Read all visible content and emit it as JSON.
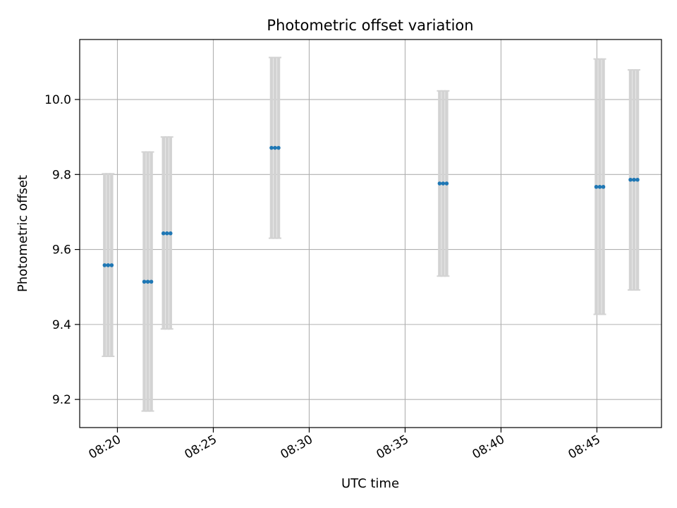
{
  "chart_data": {
    "type": "scatter",
    "title": "Photometric offset variation",
    "xlabel": "UTC time",
    "ylabel": "Photometric offset",
    "x_tick_labels": [
      "08:20",
      "08:25",
      "08:30",
      "08:35",
      "08:40",
      "08:45"
    ],
    "x_ticks": [
      "08:20",
      "08:25",
      "08:30",
      "08:35",
      "08:40",
      "08:45"
    ],
    "y_tick_labels": [
      "9.2",
      "9.4",
      "9.6",
      "9.8",
      "10.0"
    ],
    "y_ticks": [
      9.2,
      9.4,
      9.6,
      9.8,
      10.0
    ],
    "xlim": [
      "08:18:02",
      "08:48:22"
    ],
    "ylim": [
      9.125,
      10.16
    ],
    "grid": true,
    "errorbar_color": "#d3d3d3",
    "point_color": "#1f77b4",
    "series": [
      {
        "points": [
          {
            "x": "08:19:20",
            "y": 9.558,
            "yerr_low": 9.315,
            "yerr_high": 9.802
          },
          {
            "x": "08:19:31",
            "y": 9.558,
            "yerr_low": 9.315,
            "yerr_high": 9.802
          },
          {
            "x": "08:19:42",
            "y": 9.558,
            "yerr_low": 9.315,
            "yerr_high": 9.802
          },
          {
            "x": "08:21:24",
            "y": 9.514,
            "yerr_low": 9.169,
            "yerr_high": 9.86
          },
          {
            "x": "08:21:35",
            "y": 9.514,
            "yerr_low": 9.169,
            "yerr_high": 9.86
          },
          {
            "x": "08:21:46",
            "y": 9.514,
            "yerr_low": 9.169,
            "yerr_high": 9.86
          },
          {
            "x": "08:22:24",
            "y": 9.643,
            "yerr_low": 9.388,
            "yerr_high": 9.9
          },
          {
            "x": "08:22:35",
            "y": 9.643,
            "yerr_low": 9.388,
            "yerr_high": 9.9
          },
          {
            "x": "08:22:46",
            "y": 9.643,
            "yerr_low": 9.388,
            "yerr_high": 9.9
          },
          {
            "x": "08:28:02",
            "y": 9.871,
            "yerr_low": 9.63,
            "yerr_high": 10.112
          },
          {
            "x": "08:28:13",
            "y": 9.871,
            "yerr_low": 9.63,
            "yerr_high": 10.112
          },
          {
            "x": "08:28:24",
            "y": 9.871,
            "yerr_low": 9.63,
            "yerr_high": 10.112
          },
          {
            "x": "08:36:48",
            "y": 9.776,
            "yerr_low": 9.529,
            "yerr_high": 10.023
          },
          {
            "x": "08:36:59",
            "y": 9.776,
            "yerr_low": 9.529,
            "yerr_high": 10.023
          },
          {
            "x": "08:37:10",
            "y": 9.776,
            "yerr_low": 9.529,
            "yerr_high": 10.023
          },
          {
            "x": "08:44:58",
            "y": 9.767,
            "yerr_low": 9.427,
            "yerr_high": 10.108
          },
          {
            "x": "08:45:09",
            "y": 9.767,
            "yerr_low": 9.427,
            "yerr_high": 10.108
          },
          {
            "x": "08:45:20",
            "y": 9.767,
            "yerr_low": 9.427,
            "yerr_high": 10.108
          },
          {
            "x": "08:46:45",
            "y": 9.786,
            "yerr_low": 9.492,
            "yerr_high": 10.079
          },
          {
            "x": "08:46:56",
            "y": 9.786,
            "yerr_low": 9.492,
            "yerr_high": 10.079
          },
          {
            "x": "08:47:07",
            "y": 9.786,
            "yerr_low": 9.492,
            "yerr_high": 10.079
          }
        ]
      }
    ]
  }
}
